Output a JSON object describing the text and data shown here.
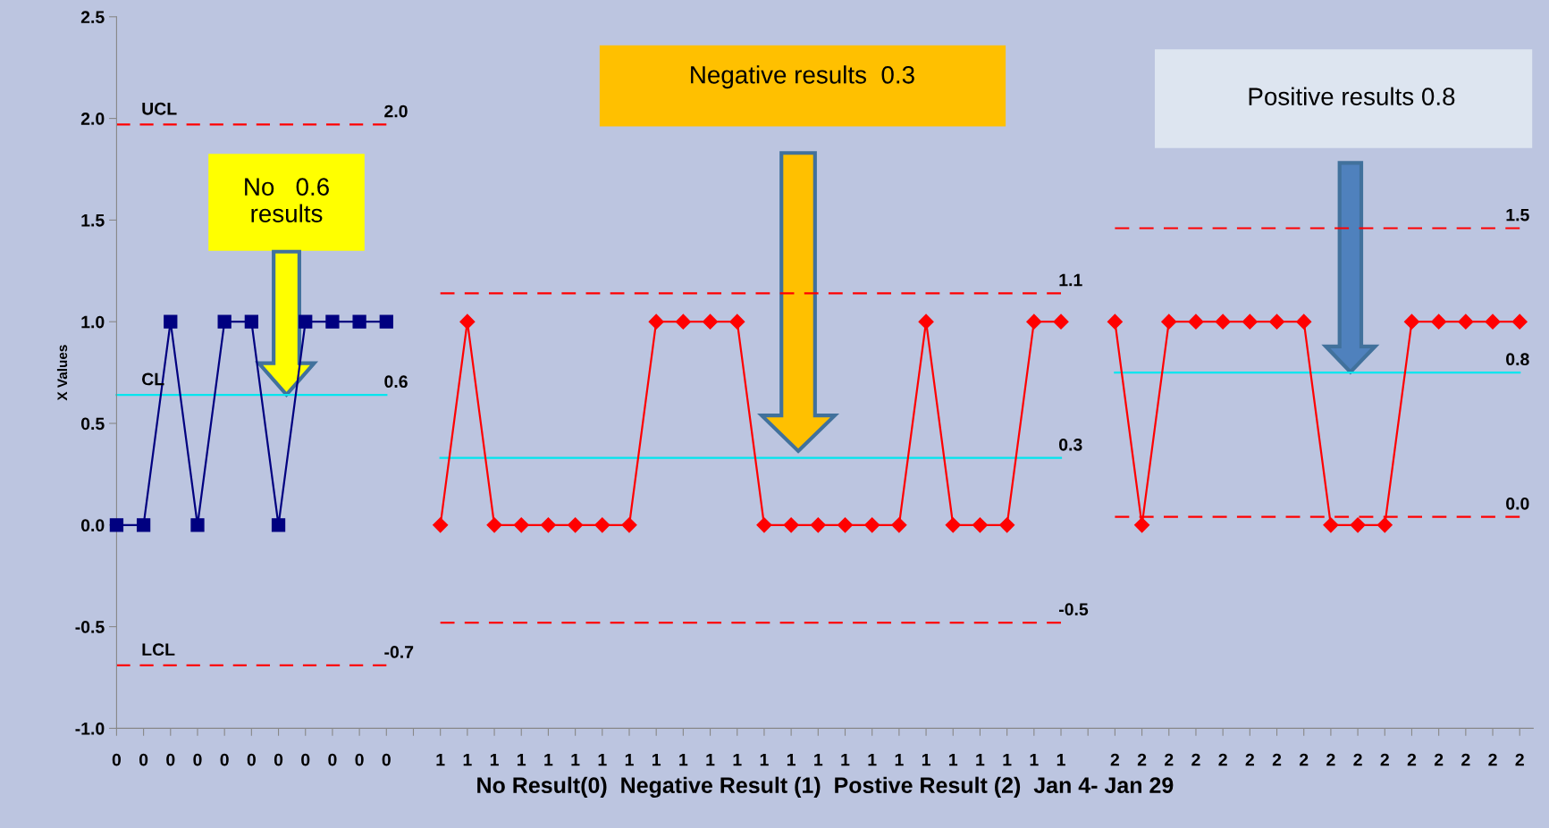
{
  "chart_data": {
    "type": "line",
    "xlabel": "No Result(0)  Negative Result (1)  Postive Result (2)  Jan 4- Jan 29",
    "ylabel": "X Values",
    "categories": [
      "0",
      "0",
      "0",
      "0",
      "0",
      "0",
      "0",
      "0",
      "0",
      "0",
      "0",
      null,
      "1",
      "1",
      "1",
      "1",
      "1",
      "1",
      "1",
      "1",
      "1",
      "1",
      "1",
      "1",
      "1",
      "1",
      "1",
      "1",
      "1",
      "1",
      "1",
      "1",
      "1",
      "1",
      "1",
      "1",
      null,
      "2",
      "2",
      "2",
      "2",
      "2",
      "2",
      "2",
      "2",
      "2",
      "2",
      "2",
      "2",
      "2",
      "2",
      "2",
      "2"
    ],
    "ylim": [
      -1.0,
      2.5
    ],
    "yticks": [
      {
        "value": -1.0,
        "label": "-1.0"
      },
      {
        "value": -0.5,
        "label": "-0.5"
      },
      {
        "value": 0.0,
        "label": "0.0"
      },
      {
        "value": 0.5,
        "label": "0.5"
      },
      {
        "value": 1.0,
        "label": "1.0"
      },
      {
        "value": 1.5,
        "label": "1.5"
      },
      {
        "value": 2.0,
        "label": "2.0"
      },
      {
        "value": 2.5,
        "label": "2.5"
      }
    ],
    "series": [
      {
        "color": "#000080",
        "marker": "square",
        "line_style": "solid",
        "values": [
          0,
          0,
          1,
          0,
          1,
          1,
          0,
          1,
          1,
          1,
          1,
          null,
          null,
          null,
          null,
          null,
          null,
          null,
          null,
          null,
          null,
          null,
          null,
          null,
          null,
          null,
          null,
          null,
          null,
          null,
          null,
          null,
          null,
          null,
          null,
          null,
          null,
          null,
          null,
          null,
          null,
          null,
          null,
          null,
          null,
          null,
          null,
          null,
          null,
          null,
          null,
          null,
          null
        ]
      },
      {
        "color": "#ff0000",
        "marker": "diamond",
        "line_style": "solid",
        "values": [
          null,
          null,
          null,
          null,
          null,
          null,
          null,
          null,
          null,
          null,
          null,
          null,
          0,
          1,
          0,
          0,
          0,
          0,
          0,
          0,
          1,
          1,
          1,
          1,
          0,
          0,
          0,
          0,
          0,
          0,
          1,
          0,
          0,
          0,
          1,
          1,
          null,
          null,
          null,
          null,
          null,
          null,
          null,
          null,
          null,
          null,
          null,
          null,
          null,
          null,
          null,
          null,
          null
        ]
      },
      {
        "color": "#ff0000",
        "marker": "diamond",
        "line_style": "solid",
        "values": [
          null,
          null,
          null,
          null,
          null,
          null,
          null,
          null,
          null,
          null,
          null,
          null,
          null,
          null,
          null,
          null,
          null,
          null,
          null,
          null,
          null,
          null,
          null,
          null,
          null,
          null,
          null,
          null,
          null,
          null,
          null,
          null,
          null,
          null,
          null,
          null,
          null,
          1,
          0,
          1,
          1,
          1,
          1,
          1,
          1,
          0,
          0,
          0,
          1,
          1,
          1,
          1,
          1
        ]
      },
      {
        "name": "UCL",
        "color": "#ff0000",
        "marker": "none",
        "line_style": "dashed",
        "values": [
          1.97,
          1.97,
          1.97,
          1.97,
          1.97,
          1.97,
          1.97,
          1.97,
          1.97,
          1.97,
          1.97,
          null,
          null,
          null,
          null,
          null,
          null,
          null,
          null,
          null,
          null,
          null,
          null,
          null,
          null,
          null,
          null,
          null,
          null,
          null,
          null,
          null,
          null,
          null,
          null,
          null,
          null,
          null,
          null,
          null,
          null,
          null,
          null,
          null,
          null,
          null,
          null,
          null,
          null,
          null,
          null,
          null,
          null
        ],
        "value_labels": [
          null,
          null,
          null,
          null,
          null,
          null,
          null,
          null,
          null,
          null,
          "2.0",
          null,
          null,
          null,
          null,
          null,
          null,
          null,
          null,
          null,
          null,
          null,
          null,
          null,
          null,
          null,
          null,
          null,
          null,
          null,
          null,
          null,
          null,
          null,
          null,
          null,
          null,
          null,
          null,
          null,
          null,
          null,
          null,
          null,
          null,
          null,
          null,
          null,
          null,
          null,
          null,
          null,
          null
        ]
      },
      {
        "name": "CL",
        "color": "#00e5ee",
        "marker": "none",
        "line_style": "solid",
        "values": [
          0.64,
          0.64,
          0.64,
          0.64,
          0.64,
          0.64,
          0.64,
          0.64,
          0.64,
          0.64,
          0.64,
          null,
          null,
          null,
          null,
          null,
          null,
          null,
          null,
          null,
          null,
          null,
          null,
          null,
          null,
          null,
          null,
          null,
          null,
          null,
          null,
          null,
          null,
          null,
          null,
          null,
          null,
          null,
          null,
          null,
          null,
          null,
          null,
          null,
          null,
          null,
          null,
          null,
          null,
          null,
          null,
          null,
          null
        ],
        "value_labels": [
          null,
          null,
          null,
          null,
          null,
          null,
          null,
          null,
          null,
          null,
          "0.6",
          null,
          null,
          null,
          null,
          null,
          null,
          null,
          null,
          null,
          null,
          null,
          null,
          null,
          null,
          null,
          null,
          null,
          null,
          null,
          null,
          null,
          null,
          null,
          null,
          null,
          null,
          null,
          null,
          null,
          null,
          null,
          null,
          null,
          null,
          null,
          null,
          null,
          null,
          null,
          null,
          null,
          null
        ]
      },
      {
        "name": "LCL",
        "color": "#ff0000",
        "marker": "none",
        "line_style": "dashed",
        "values": [
          -0.69,
          -0.69,
          -0.69,
          -0.69,
          -0.69,
          -0.69,
          -0.69,
          -0.69,
          -0.69,
          -0.69,
          -0.69,
          null,
          null,
          null,
          null,
          null,
          null,
          null,
          null,
          null,
          null,
          null,
          null,
          null,
          null,
          null,
          null,
          null,
          null,
          null,
          null,
          null,
          null,
          null,
          null,
          null,
          null,
          null,
          null,
          null,
          null,
          null,
          null,
          null,
          null,
          null,
          null,
          null,
          null,
          null,
          null,
          null,
          null
        ],
        "value_labels": [
          null,
          null,
          null,
          null,
          null,
          null,
          null,
          null,
          null,
          null,
          "-0.7",
          null,
          null,
          null,
          null,
          null,
          null,
          null,
          null,
          null,
          null,
          null,
          null,
          null,
          null,
          null,
          null,
          null,
          null,
          null,
          null,
          null,
          null,
          null,
          null,
          null,
          null,
          null,
          null,
          null,
          null,
          null,
          null,
          null,
          null,
          null,
          null,
          null,
          null,
          null,
          null,
          null,
          null
        ]
      },
      {
        "color": "#ff0000",
        "marker": "none",
        "line_style": "dashed",
        "values": [
          null,
          null,
          null,
          null,
          null,
          null,
          null,
          null,
          null,
          null,
          null,
          null,
          1.14,
          1.14,
          1.14,
          1.14,
          1.14,
          1.14,
          1.14,
          1.14,
          1.14,
          1.14,
          1.14,
          1.14,
          1.14,
          1.14,
          1.14,
          1.14,
          1.14,
          1.14,
          1.14,
          1.14,
          1.14,
          1.14,
          1.14,
          1.14,
          null,
          null,
          null,
          null,
          null,
          null,
          null,
          null,
          null,
          null,
          null,
          null,
          null,
          null,
          null,
          null,
          null
        ],
        "value_labels": [
          null,
          null,
          null,
          null,
          null,
          null,
          null,
          null,
          null,
          null,
          null,
          null,
          null,
          null,
          null,
          null,
          null,
          null,
          null,
          null,
          null,
          null,
          null,
          null,
          null,
          null,
          null,
          null,
          null,
          null,
          null,
          null,
          null,
          null,
          null,
          "1.1",
          null,
          null,
          null,
          null,
          null,
          null,
          null,
          null,
          null,
          null,
          null,
          null,
          null,
          null,
          null,
          null,
          null
        ]
      },
      {
        "color": "#00e5ee",
        "marker": "none",
        "line_style": "solid",
        "values": [
          null,
          null,
          null,
          null,
          null,
          null,
          null,
          null,
          null,
          null,
          null,
          null,
          0.33,
          0.33,
          0.33,
          0.33,
          0.33,
          0.33,
          0.33,
          0.33,
          0.33,
          0.33,
          0.33,
          0.33,
          0.33,
          0.33,
          0.33,
          0.33,
          0.33,
          0.33,
          0.33,
          0.33,
          0.33,
          0.33,
          0.33,
          0.33,
          null,
          null,
          null,
          null,
          null,
          null,
          null,
          null,
          null,
          null,
          null,
          null,
          null,
          null,
          null,
          null,
          null
        ],
        "value_labels": [
          null,
          null,
          null,
          null,
          null,
          null,
          null,
          null,
          null,
          null,
          null,
          null,
          null,
          null,
          null,
          null,
          null,
          null,
          null,
          null,
          null,
          null,
          null,
          null,
          null,
          null,
          null,
          null,
          null,
          null,
          null,
          null,
          null,
          null,
          null,
          "0.3",
          null,
          null,
          null,
          null,
          null,
          null,
          null,
          null,
          null,
          null,
          null,
          null,
          null,
          null,
          null,
          null,
          null
        ]
      },
      {
        "color": "#ff0000",
        "marker": "none",
        "line_style": "dashed",
        "values": [
          null,
          null,
          null,
          null,
          null,
          null,
          null,
          null,
          null,
          null,
          null,
          null,
          -0.48,
          -0.48,
          -0.48,
          -0.48,
          -0.48,
          -0.48,
          -0.48,
          -0.48,
          -0.48,
          -0.48,
          -0.48,
          -0.48,
          -0.48,
          -0.48,
          -0.48,
          -0.48,
          -0.48,
          -0.48,
          -0.48,
          -0.48,
          -0.48,
          -0.48,
          -0.48,
          -0.48,
          null,
          null,
          null,
          null,
          null,
          null,
          null,
          null,
          null,
          null,
          null,
          null,
          null,
          null,
          null,
          null,
          null
        ],
        "value_labels": [
          null,
          null,
          null,
          null,
          null,
          null,
          null,
          null,
          null,
          null,
          null,
          null,
          null,
          null,
          null,
          null,
          null,
          null,
          null,
          null,
          null,
          null,
          null,
          null,
          null,
          null,
          null,
          null,
          null,
          null,
          null,
          null,
          null,
          null,
          null,
          "-0.5",
          null,
          null,
          null,
          null,
          null,
          null,
          null,
          null,
          null,
          null,
          null,
          null,
          null,
          null,
          null,
          null,
          null
        ]
      },
      {
        "color": "#ff0000",
        "marker": "none",
        "line_style": "dashed",
        "values": [
          null,
          null,
          null,
          null,
          null,
          null,
          null,
          null,
          null,
          null,
          null,
          null,
          null,
          null,
          null,
          null,
          null,
          null,
          null,
          null,
          null,
          null,
          null,
          null,
          null,
          null,
          null,
          null,
          null,
          null,
          null,
          null,
          null,
          null,
          null,
          null,
          null,
          1.46,
          1.46,
          1.46,
          1.46,
          1.46,
          1.46,
          1.46,
          1.46,
          1.46,
          1.46,
          1.46,
          1.46,
          1.46,
          1.46,
          1.46,
          1.46
        ],
        "value_labels": [
          null,
          null,
          null,
          null,
          null,
          null,
          null,
          null,
          null,
          null,
          null,
          null,
          null,
          null,
          null,
          null,
          null,
          null,
          null,
          null,
          null,
          null,
          null,
          null,
          null,
          null,
          null,
          null,
          null,
          null,
          null,
          null,
          null,
          null,
          null,
          null,
          null,
          null,
          null,
          null,
          null,
          null,
          null,
          null,
          null,
          null,
          null,
          null,
          null,
          null,
          null,
          null,
          "1.5"
        ]
      },
      {
        "color": "#00e5ee",
        "marker": "none",
        "line_style": "solid",
        "values": [
          null,
          null,
          null,
          null,
          null,
          null,
          null,
          null,
          null,
          null,
          null,
          null,
          null,
          null,
          null,
          null,
          null,
          null,
          null,
          null,
          null,
          null,
          null,
          null,
          null,
          null,
          null,
          null,
          null,
          null,
          null,
          null,
          null,
          null,
          null,
          null,
          null,
          0.75,
          0.75,
          0.75,
          0.75,
          0.75,
          0.75,
          0.75,
          0.75,
          0.75,
          0.75,
          0.75,
          0.75,
          0.75,
          0.75,
          0.75,
          0.75
        ],
        "value_labels": [
          null,
          null,
          null,
          null,
          null,
          null,
          null,
          null,
          null,
          null,
          null,
          null,
          null,
          null,
          null,
          null,
          null,
          null,
          null,
          null,
          null,
          null,
          null,
          null,
          null,
          null,
          null,
          null,
          null,
          null,
          null,
          null,
          null,
          null,
          null,
          null,
          null,
          null,
          null,
          null,
          null,
          null,
          null,
          null,
          null,
          null,
          null,
          null,
          null,
          null,
          null,
          null,
          "0.8"
        ]
      },
      {
        "color": "#ff0000",
        "marker": "none",
        "line_style": "dashed",
        "values": [
          null,
          null,
          null,
          null,
          null,
          null,
          null,
          null,
          null,
          null,
          null,
          null,
          null,
          null,
          null,
          null,
          null,
          null,
          null,
          null,
          null,
          null,
          null,
          null,
          null,
          null,
          null,
          null,
          null,
          null,
          null,
          null,
          null,
          null,
          null,
          null,
          null,
          0.04,
          0.04,
          0.04,
          0.04,
          0.04,
          0.04,
          0.04,
          0.04,
          0.04,
          0.04,
          0.04,
          0.04,
          0.04,
          0.04,
          0.04,
          0.04
        ],
        "value_labels": [
          null,
          null,
          null,
          null,
          null,
          null,
          null,
          null,
          null,
          null,
          null,
          null,
          null,
          null,
          null,
          null,
          null,
          null,
          null,
          null,
          null,
          null,
          null,
          null,
          null,
          null,
          null,
          null,
          null,
          null,
          null,
          null,
          null,
          null,
          null,
          null,
          null,
          null,
          null,
          null,
          null,
          null,
          null,
          null,
          null,
          null,
          null,
          null,
          null,
          null,
          null,
          null,
          "0.0"
        ]
      }
    ],
    "annotations": [
      "No   0.6\nresults",
      "Negative results  0.3",
      "Positive results 0.8"
    ]
  }
}
